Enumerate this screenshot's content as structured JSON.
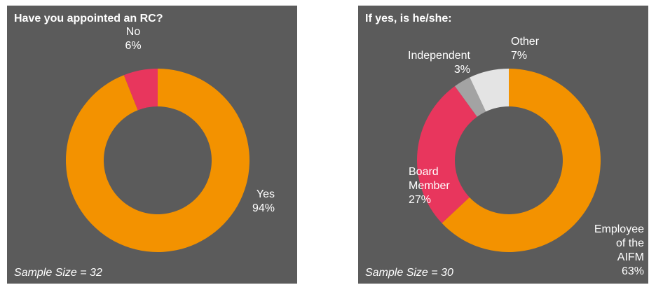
{
  "chart_data": [
    {
      "type": "pie",
      "title": "Have you appointed an RC?",
      "categories": [
        "Yes",
        "No"
      ],
      "values": [
        94,
        6
      ],
      "value_labels": [
        "94%",
        "6%"
      ],
      "colors": [
        "#f39200",
        "#e8365d"
      ],
      "donut": true,
      "footnote": "Sample Size = 32"
    },
    {
      "type": "pie",
      "title": "If yes, is he/she:",
      "categories": [
        "Employee of the AIFM",
        "Board Member",
        "Independent",
        "Other"
      ],
      "values": [
        63,
        27,
        3,
        7
      ],
      "value_labels": [
        "63%",
        "27%",
        "3%",
        "7%"
      ],
      "colors": [
        "#f39200",
        "#e8365d",
        "#a3a3a3",
        "#e4e4e4"
      ],
      "donut": true,
      "footnote": "Sample Size = 30"
    }
  ]
}
